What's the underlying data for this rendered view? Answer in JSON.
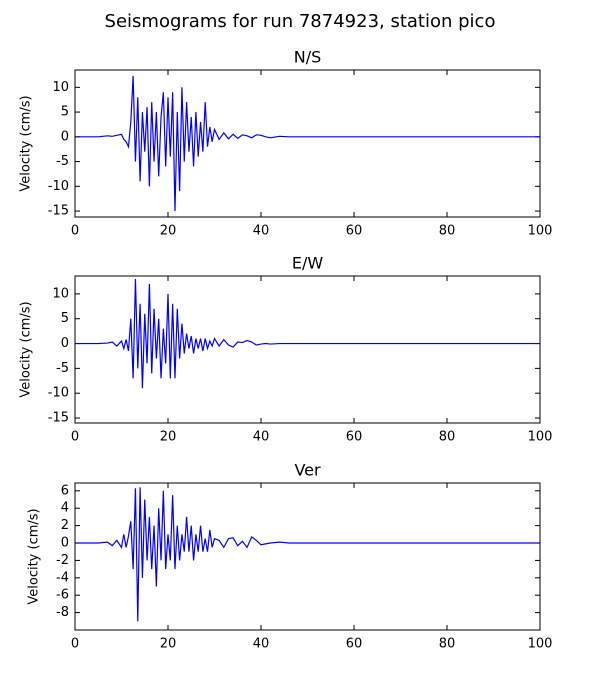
{
  "title": "Seismograms for run 7874923, station pico",
  "chart_data": [
    {
      "type": "line",
      "title": "N/S",
      "ylabel": "Velocity (cm/s)",
      "grid": false,
      "xlim": [
        0,
        100
      ],
      "xticks": [
        0,
        20,
        40,
        60,
        80,
        100
      ],
      "ylim": [
        -16.2,
        13.5
      ],
      "yticks": [
        10,
        5,
        0,
        -5,
        -10,
        -15
      ],
      "x": [
        0,
        5,
        7,
        8,
        9,
        10,
        10.5,
        11,
        11.5,
        12,
        12.5,
        13,
        13.5,
        14,
        14.5,
        15,
        15.5,
        16,
        16.5,
        17,
        17.5,
        18,
        18.5,
        19,
        19.5,
        20,
        20.5,
        21,
        21.5,
        22,
        22.5,
        23,
        23.5,
        24,
        24.5,
        25,
        25.5,
        26,
        26.5,
        27,
        27.5,
        28,
        28.5,
        29,
        29.5,
        30,
        31,
        32,
        33,
        34,
        35,
        36,
        37,
        38,
        39,
        40,
        41,
        42,
        44,
        46,
        50,
        60,
        80,
        100
      ],
      "series": [
        {
          "color": "#0000ff",
          "values": [
            0,
            0,
            0.2,
            0.1,
            0.3,
            0.5,
            -0.5,
            -1,
            -2,
            3,
            12.3,
            -5,
            8,
            -9,
            5,
            -3,
            6,
            -10,
            7,
            -5,
            5,
            -8,
            4,
            9,
            -6,
            8,
            -4,
            9,
            -15,
            5,
            -11,
            10,
            -5,
            7,
            -3,
            4,
            -6,
            5,
            -4,
            3,
            -3,
            7,
            -2,
            2,
            -1,
            1.5,
            -0.5,
            0.8,
            -0.4,
            0.5,
            -0.3,
            0.4,
            0.2,
            -0.2,
            0.4,
            0.3,
            0,
            -0.2,
            0.1,
            0,
            0,
            0,
            0,
            0
          ]
        }
      ]
    },
    {
      "type": "line",
      "title": "E/W",
      "ylabel": "Velocity (cm/s)",
      "grid": false,
      "xlim": [
        0,
        100
      ],
      "xticks": [
        0,
        20,
        40,
        60,
        80,
        100
      ],
      "ylim": [
        -16,
        13.6
      ],
      "yticks": [
        10,
        5,
        0,
        -5,
        -10,
        -15
      ],
      "x": [
        0,
        5,
        7,
        8,
        9,
        10,
        10.5,
        11,
        11.5,
        12,
        12.5,
        13,
        13.5,
        14,
        14.5,
        15,
        15.5,
        16,
        16.5,
        17,
        17.5,
        18,
        18.5,
        19,
        19.5,
        20,
        20.5,
        21,
        21.5,
        22,
        22.5,
        23,
        23.5,
        24,
        24.5,
        25,
        25.5,
        26,
        26.5,
        27,
        27.5,
        28,
        28.5,
        29,
        29.5,
        30,
        31,
        32,
        33,
        34,
        35,
        36,
        37,
        38,
        39,
        40,
        41,
        42,
        44,
        46,
        50,
        60,
        80,
        100
      ],
      "series": [
        {
          "color": "#0000ff",
          "values": [
            0,
            0,
            0.1,
            0.3,
            -0.5,
            0.5,
            -1,
            0.8,
            -1.5,
            5,
            -7,
            13,
            -5,
            8,
            -9,
            6,
            -4,
            12,
            -6,
            7,
            -3,
            5,
            -7,
            3,
            -4,
            10,
            -7,
            8,
            -7,
            7,
            -3,
            4,
            -2,
            2,
            -1,
            1.5,
            -2,
            1,
            -1,
            1,
            -1.5,
            1,
            -1,
            0.5,
            -0.5,
            1,
            -0.5,
            0.8,
            -0.3,
            -0.7,
            0.3,
            0.2,
            0.6,
            0.3,
            -0.3,
            -0.1,
            0,
            -0.1,
            0,
            0,
            0,
            0,
            0,
            0
          ]
        }
      ]
    },
    {
      "type": "line",
      "title": "Ver",
      "ylabel": "Velocity (cm/s)",
      "grid": false,
      "xlim": [
        0,
        100
      ],
      "xticks": [
        0,
        20,
        40,
        60,
        80,
        100
      ],
      "ylim": [
        -10,
        6.9
      ],
      "yticks": [
        6,
        4,
        2,
        0,
        -2,
        -4,
        -6,
        -8
      ],
      "x": [
        0,
        5,
        7,
        8,
        9,
        10,
        10.5,
        11,
        11.5,
        12,
        12.5,
        13,
        13.5,
        14,
        14.5,
        15,
        15.5,
        16,
        16.5,
        17,
        17.5,
        18,
        18.5,
        19,
        19.5,
        20,
        20.5,
        21,
        21.5,
        22,
        22.5,
        23,
        23.5,
        24,
        24.5,
        25,
        25.5,
        26,
        26.5,
        27,
        27.5,
        28,
        28.5,
        29,
        29.5,
        30,
        31,
        32,
        33,
        34,
        35,
        36,
        37,
        38,
        39,
        40,
        41,
        42,
        44,
        46,
        50,
        60,
        80,
        100
      ],
      "series": [
        {
          "color": "#0000ff",
          "values": [
            0,
            0,
            0.1,
            -0.3,
            0.3,
            -0.5,
            1,
            -0.5,
            0.8,
            2.5,
            -3,
            6.3,
            -9,
            6.4,
            -4,
            5,
            -2,
            3,
            -3,
            2,
            -5,
            4,
            -2,
            6,
            -3,
            1,
            -2,
            5.5,
            -3,
            2,
            -2,
            1,
            -1,
            3,
            -1,
            2,
            -2,
            1,
            -1,
            2,
            -1,
            0.5,
            -1,
            1.5,
            -0.5,
            0.5,
            0.3,
            -0.5,
            0.5,
            0.6,
            -0.3,
            0.2,
            -0.5,
            0.7,
            0.3,
            -0.2,
            -0.1,
            0,
            0.1,
            0,
            0,
            0,
            0,
            0
          ]
        }
      ]
    }
  ]
}
